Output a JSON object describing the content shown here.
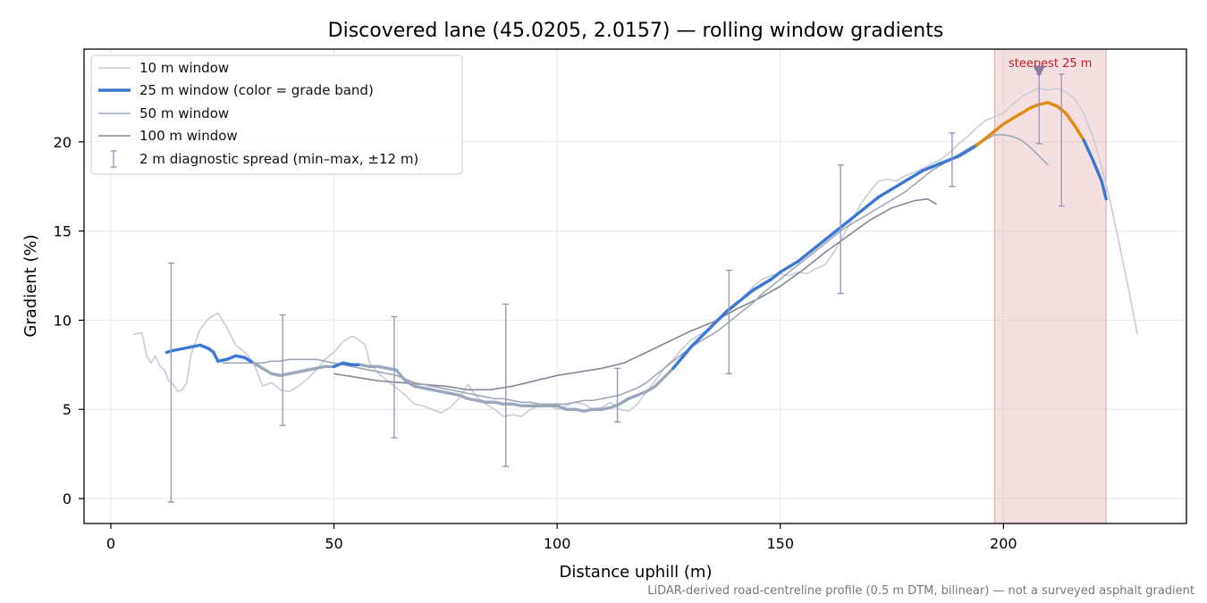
{
  "chart_data": {
    "type": "line",
    "title": "Discovered lane (45.0205, 2.0157) — rolling window gradients",
    "xlabel": "Distance uphill (m)",
    "ylabel": "Gradient (%)",
    "xlim": [
      -6,
      241
    ],
    "ylim": [
      -1.4,
      25.2
    ],
    "xticks": [
      0,
      50,
      100,
      150,
      200
    ],
    "yticks": [
      0,
      5,
      10,
      15,
      20
    ],
    "grid": true,
    "legend_position": "upper-left",
    "footnote": "LiDAR-derived road-centreline profile (0.5 m DTM, bilinear) — not a surveyed asphalt gradient",
    "highlight_band": {
      "x_range": [
        198,
        223
      ],
      "label": "steepest 25 m",
      "marker": {
        "x": 208,
        "y": 24
      },
      "color": "#e8b4b8"
    },
    "series": [
      {
        "name": "10 m window",
        "color": "#c8ccd6",
        "x": [
          5,
          7,
          8,
          9,
          10,
          11,
          12,
          13,
          14,
          15,
          16,
          17,
          18,
          19,
          20,
          21,
          22,
          24,
          26,
          28,
          30,
          32,
          34,
          36,
          38,
          40,
          42,
          44,
          46,
          48,
          50,
          52,
          54,
          55,
          57,
          58,
          60,
          62,
          64,
          66,
          68,
          70,
          72,
          74,
          76,
          78,
          80,
          82,
          84,
          86,
          88,
          90,
          92,
          94,
          96,
          98,
          100,
          102,
          104,
          106,
          108,
          110,
          112,
          114,
          116,
          118,
          120,
          122,
          124,
          126,
          128,
          130,
          132,
          134,
          136,
          138,
          140,
          142,
          144,
          146,
          148,
          150,
          152,
          154,
          156,
          158,
          160,
          162,
          164,
          166,
          168,
          170,
          172,
          174,
          176,
          178,
          180,
          182,
          184,
          186,
          188,
          190,
          192,
          194,
          196,
          198,
          200,
          202,
          204,
          206,
          208,
          210,
          212,
          214,
          216,
          218,
          220,
          222,
          224,
          226,
          228,
          230
        ],
        "values": [
          9.2,
          9.3,
          8.0,
          7.6,
          8.0,
          7.4,
          7.2,
          6.6,
          6.4,
          6.0,
          6.1,
          6.5,
          8.1,
          8.8,
          9.5,
          9.8,
          10.1,
          10.4,
          9.6,
          8.6,
          8.2,
          7.6,
          6.3,
          6.5,
          6.1,
          6.0,
          6.3,
          6.7,
          7.2,
          7.8,
          8.2,
          8.8,
          9.1,
          9.0,
          8.6,
          7.6,
          7.0,
          6.6,
          6.2,
          5.8,
          5.3,
          5.2,
          5.0,
          4.8,
          5.1,
          5.6,
          6.4,
          5.7,
          5.3,
          5.0,
          4.6,
          4.7,
          4.6,
          5.0,
          5.2,
          5.3,
          5.0,
          5.2,
          5.4,
          5.3,
          5.0,
          5.1,
          5.4,
          5.0,
          4.9,
          5.3,
          6.0,
          6.6,
          7.3,
          7.8,
          8.4,
          8.9,
          9.2,
          9.5,
          9.9,
          10.4,
          10.8,
          11.4,
          11.9,
          12.3,
          12.5,
          12.6,
          12.5,
          12.7,
          12.6,
          12.9,
          13.1,
          13.8,
          14.7,
          15.6,
          16.5,
          17.2,
          17.8,
          17.9,
          17.8,
          18.1,
          18.3,
          18.5,
          18.8,
          19.0,
          19.4,
          19.9,
          20.3,
          20.8,
          21.2,
          21.4,
          21.6,
          22.1,
          22.5,
          22.8,
          23.0,
          22.9,
          23.0,
          22.8,
          22.4,
          21.6,
          20.3,
          18.6,
          16.6,
          14.2,
          11.8,
          9.2
        ]
      },
      {
        "name": "25 m window (color = grade band)",
        "color": "#3a78d4",
        "band_colors": {
          "low": "#9aa8bc",
          "high": "#e08c10"
        },
        "band_thresholds": [
          7.5,
          20
        ],
        "x": [
          12.5,
          14,
          16,
          18,
          20,
          22,
          23,
          24,
          26,
          28,
          30,
          32,
          34,
          36,
          38,
          40,
          42,
          44,
          46,
          48,
          50,
          52,
          54,
          56,
          58,
          60,
          62,
          64,
          66,
          68,
          70,
          72,
          74,
          76,
          78,
          80,
          82,
          84,
          86,
          88,
          90,
          92,
          94,
          96,
          98,
          100,
          102,
          104,
          106,
          108,
          110,
          112,
          114,
          116,
          118,
          120,
          122,
          124,
          126,
          128,
          130,
          132,
          134,
          136,
          138,
          140,
          142,
          144,
          146,
          148,
          150,
          152,
          154,
          156,
          158,
          160,
          162,
          164,
          166,
          168,
          170,
          172,
          174,
          176,
          178,
          180,
          182,
          184,
          186,
          188,
          190,
          192,
          194,
          196,
          198,
          200,
          202,
          204,
          206,
          208,
          210,
          212,
          214,
          216,
          218,
          220,
          222,
          223
        ],
        "values": [
          8.2,
          8.3,
          8.4,
          8.5,
          8.6,
          8.4,
          8.2,
          7.7,
          7.8,
          8.0,
          7.9,
          7.6,
          7.3,
          7.0,
          6.9,
          7.0,
          7.1,
          7.2,
          7.3,
          7.4,
          7.4,
          7.6,
          7.5,
          7.5,
          7.4,
          7.4,
          7.3,
          7.2,
          6.6,
          6.3,
          6.2,
          6.1,
          6.0,
          5.9,
          5.8,
          5.6,
          5.5,
          5.4,
          5.4,
          5.3,
          5.3,
          5.2,
          5.2,
          5.2,
          5.2,
          5.2,
          5.0,
          5.0,
          4.9,
          5.0,
          5.0,
          5.1,
          5.3,
          5.6,
          5.8,
          6.0,
          6.3,
          6.8,
          7.3,
          7.9,
          8.5,
          9.0,
          9.5,
          10.0,
          10.5,
          10.9,
          11.3,
          11.7,
          12.0,
          12.3,
          12.7,
          13.0,
          13.3,
          13.7,
          14.1,
          14.5,
          14.9,
          15.3,
          15.7,
          16.1,
          16.5,
          16.9,
          17.2,
          17.5,
          17.8,
          18.1,
          18.4,
          18.6,
          18.8,
          19.0,
          19.2,
          19.5,
          19.8,
          20.2,
          20.6,
          21.0,
          21.3,
          21.6,
          21.9,
          22.1,
          22.2,
          22.0,
          21.6,
          20.9,
          20.1,
          19.0,
          17.8,
          16.8
        ]
      },
      {
        "name": "50 m window",
        "color": "#a0a8b8",
        "x": [
          25,
          28,
          30,
          32,
          34,
          36,
          38,
          40,
          42,
          44,
          46,
          48,
          50,
          52,
          54,
          56,
          58,
          60,
          62,
          64,
          66,
          68,
          70,
          72,
          74,
          76,
          78,
          80,
          82,
          84,
          86,
          88,
          90,
          92,
          94,
          96,
          98,
          100,
          102,
          104,
          106,
          108,
          110,
          112,
          114,
          116,
          118,
          120,
          122,
          124,
          126,
          128,
          130,
          132,
          134,
          136,
          138,
          140,
          142,
          144,
          146,
          148,
          150,
          152,
          154,
          156,
          158,
          160,
          162,
          164,
          166,
          168,
          170,
          172,
          174,
          176,
          178,
          180,
          182,
          184,
          186,
          188,
          190,
          192,
          194,
          196,
          198,
          200,
          202,
          204,
          206,
          208,
          210
        ],
        "values": [
          7.6,
          7.6,
          7.6,
          7.6,
          7.6,
          7.7,
          7.7,
          7.8,
          7.8,
          7.8,
          7.8,
          7.7,
          7.6,
          7.5,
          7.4,
          7.3,
          7.2,
          7.1,
          7.0,
          6.9,
          6.7,
          6.5,
          6.4,
          6.3,
          6.2,
          6.1,
          6.0,
          5.9,
          5.8,
          5.7,
          5.6,
          5.6,
          5.5,
          5.4,
          5.4,
          5.3,
          5.3,
          5.3,
          5.3,
          5.4,
          5.5,
          5.5,
          5.6,
          5.7,
          5.8,
          6.0,
          6.2,
          6.5,
          6.9,
          7.3,
          7.7,
          8.1,
          8.5,
          8.8,
          9.1,
          9.4,
          9.8,
          10.2,
          10.6,
          11.0,
          11.5,
          11.9,
          12.3,
          12.7,
          13.1,
          13.5,
          13.9,
          14.3,
          14.7,
          15.1,
          15.4,
          15.7,
          16.0,
          16.3,
          16.6,
          16.9,
          17.2,
          17.6,
          18.0,
          18.4,
          18.7,
          19.0,
          19.3,
          19.6,
          19.9,
          20.1,
          20.4,
          20.4,
          20.3,
          20.1,
          19.7,
          19.2,
          18.7
        ]
      },
      {
        "name": "100 m window",
        "color": "#828896",
        "x": [
          50,
          55,
          60,
          65,
          70,
          75,
          80,
          85,
          90,
          95,
          100,
          105,
          110,
          115,
          120,
          125,
          130,
          135,
          140,
          145,
          150,
          155,
          160,
          165,
          170,
          175,
          180,
          183,
          185
        ],
        "values": [
          7.0,
          6.8,
          6.6,
          6.5,
          6.4,
          6.3,
          6.1,
          6.1,
          6.3,
          6.6,
          6.9,
          7.1,
          7.3,
          7.6,
          8.2,
          8.8,
          9.4,
          9.9,
          10.6,
          11.2,
          11.9,
          12.8,
          13.8,
          14.7,
          15.6,
          16.3,
          16.7,
          16.8,
          16.5
        ]
      }
    ],
    "errorbars": {
      "name": "2 m diagnostic spread (min–max, ±12 m)",
      "color": "#9a98ba",
      "points": [
        {
          "x": 13.5,
          "low": -0.2,
          "high": 13.2
        },
        {
          "x": 38.5,
          "low": 4.1,
          "high": 10.3
        },
        {
          "x": 63.5,
          "low": 3.4,
          "high": 10.2
        },
        {
          "x": 88.5,
          "low": 1.8,
          "high": 10.9
        },
        {
          "x": 113.5,
          "low": 4.3,
          "high": 7.3
        },
        {
          "x": 138.5,
          "low": 7.0,
          "high": 12.8
        },
        {
          "x": 163.5,
          "low": 11.5,
          "high": 18.7
        },
        {
          "x": 188.5,
          "low": 17.5,
          "high": 20.5
        },
        {
          "x": 208,
          "low": 19.9,
          "high": 23.8
        },
        {
          "x": 213,
          "low": 16.4,
          "high": 23.8
        }
      ]
    }
  }
}
